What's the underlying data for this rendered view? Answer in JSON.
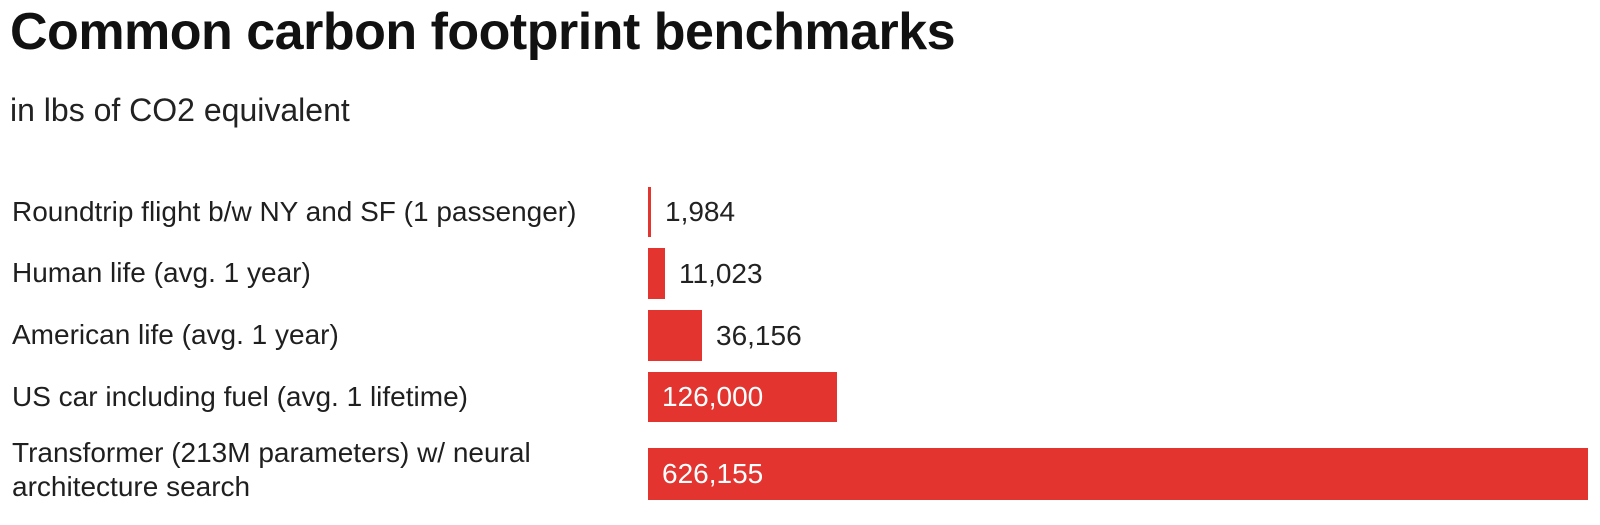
{
  "chart": {
    "title": "Common carbon footprint benchmarks",
    "subtitle": "in lbs of CO2 equivalent"
  },
  "chart_data": {
    "type": "bar",
    "orientation": "horizontal",
    "title": "Common carbon footprint benchmarks",
    "subtitle": "in lbs of CO2 equivalent",
    "categories": [
      "Roundtrip flight b/w NY and SF (1 passenger)",
      "Human life (avg. 1 year)",
      "American life (avg. 1 year)",
      "US car including fuel (avg. 1 lifetime)",
      "Transformer (213M parameters) w/ neural architecture search"
    ],
    "values": [
      1984,
      11023,
      36156,
      126000,
      626155
    ],
    "value_labels": [
      "1,984",
      "11,023",
      "36,156",
      "126,000",
      "626,155"
    ],
    "xlim": [
      0,
      626155
    ],
    "grid": false,
    "legend": "none",
    "bar_color": "#e3342f"
  }
}
